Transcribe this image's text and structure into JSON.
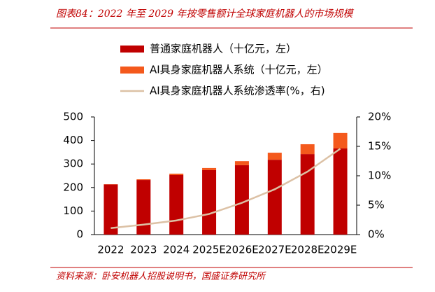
{
  "title": "图表84：2022 年至 2029 年按零售额计全球家庭机器人的市场规模",
  "source": "资料来源：卧安机器人招股说明书，国盛证券研究所",
  "chart_data": {
    "type": "bar",
    "stacked": true,
    "categories": [
      "2022",
      "2023",
      "2024",
      "2025E",
      "2026E",
      "2027E",
      "2028E",
      "2029E"
    ],
    "series": [
      {
        "name": "普通家庭机器人（十亿元，左）",
        "color": "#c00000",
        "values": [
          213,
          232,
          253,
          274,
          295,
          318,
          342,
          366
        ]
      },
      {
        "name": "AI具身家庭机器人系统（十亿元，左）",
        "color": "#f4591c",
        "values": [
          1,
          3,
          6,
          9,
          17,
          30,
          42,
          66
        ]
      },
      {
        "name": "AI具身家庭机器人系统渗透率(%，右)",
        "color": "#dcc1a5",
        "type": "line",
        "axis": "y2",
        "values": [
          1.1,
          1.7,
          2.4,
          3.5,
          5.4,
          7.7,
          10.7,
          14.6
        ]
      }
    ],
    "ylim": [
      0,
      500
    ],
    "yticks": [
      0,
      100,
      200,
      300,
      400,
      500
    ],
    "y2lim": [
      0,
      20
    ],
    "y2ticks": [
      {
        "value": 0,
        "label": "0%"
      },
      {
        "value": 5,
        "label": "5%"
      },
      {
        "value": 10,
        "label": "10%"
      },
      {
        "value": 15,
        "label": "15%"
      },
      {
        "value": 20,
        "label": "20%"
      }
    ],
    "legend": "top"
  }
}
